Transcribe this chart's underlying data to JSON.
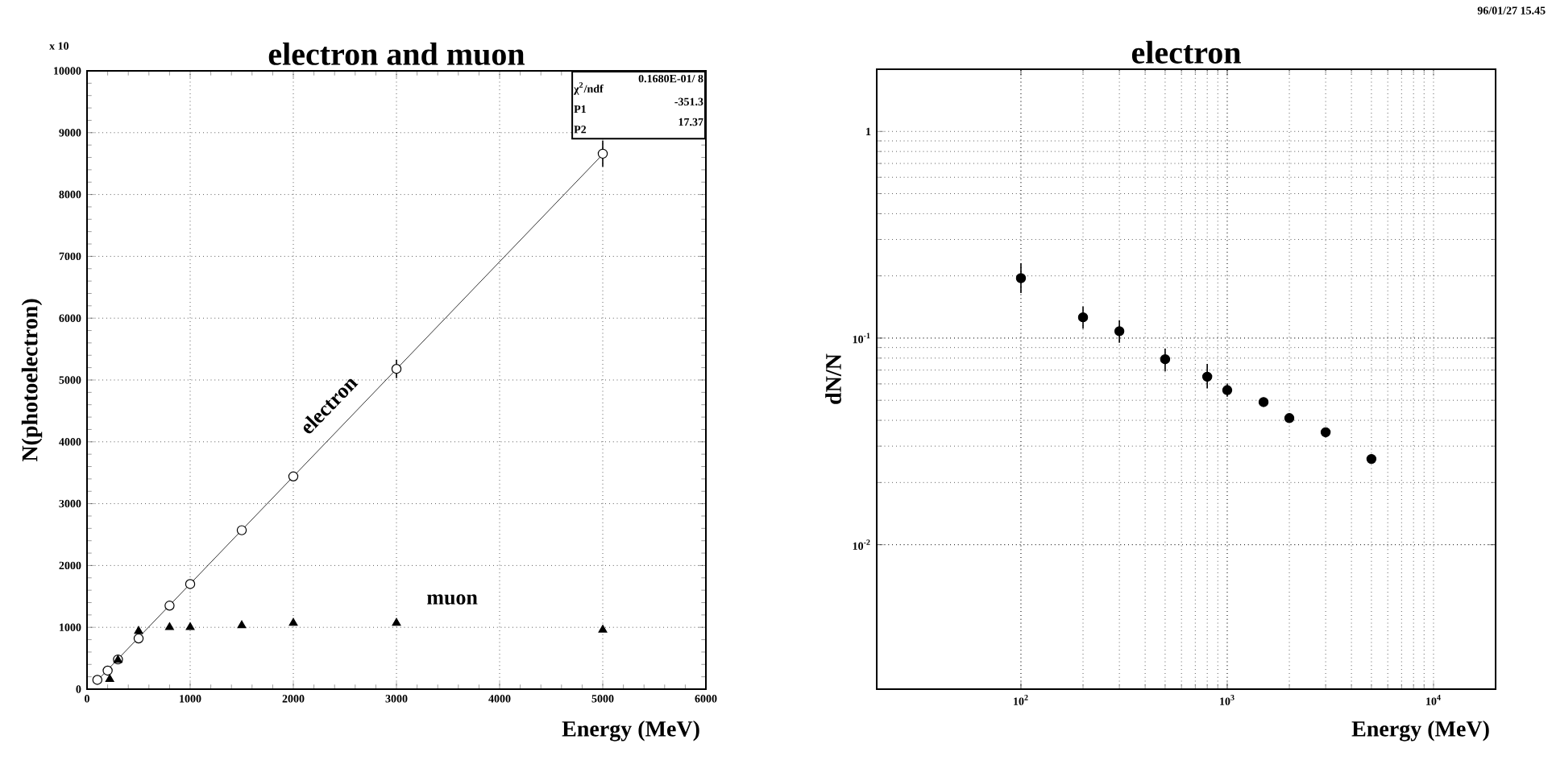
{
  "chart_data": [
    {
      "type": "scatter",
      "title": "electron and muon",
      "xlabel": "Energy (MeV)",
      "ylabel": "N(photoelectron)",
      "xlim": [
        0,
        6000
      ],
      "ylim": [
        0,
        10000
      ],
      "xticks": [
        0,
        1000,
        2000,
        3000,
        4000,
        5000,
        6000
      ],
      "yticks": [
        0,
        1000,
        2000,
        3000,
        4000,
        5000,
        6000,
        7000,
        8000,
        9000,
        10000
      ],
      "grid": true,
      "series": [
        {
          "name": "electron",
          "marker": "circle",
          "color": "#000000",
          "x": [
            100,
            200,
            300,
            500,
            800,
            1000,
            1500,
            2000,
            3000,
            5000
          ],
          "values": [
            150,
            300,
            480,
            820,
            1350,
            1700,
            2570,
            3440,
            5180,
            8660
          ],
          "errors": [
            null,
            null,
            null,
            null,
            null,
            null,
            null,
            null,
            150,
            210
          ]
        },
        {
          "type": "line",
          "marker": "none",
          "color": "#000000",
          "x": [
            100,
            5000
          ],
          "values": [
            140,
            8650
          ]
        },
        {
          "name": "muon",
          "marker": "triangle",
          "color": "#000000",
          "x": [
            220,
            300,
            500,
            800,
            1000,
            1500,
            2000,
            3000,
            5000
          ],
          "values": [
            160,
            470,
            940,
            1000,
            1000,
            1030,
            1070,
            1070,
            960
          ]
        }
      ],
      "annotations": [
        "x 10",
        "χ$^{2}$/ndf",
        "0.1680E-01/   8",
        "P1",
        "-351.3",
        "P2",
        "17.37"
      ]
    },
    {
      "type": "scatter",
      "title": "electron",
      "xlabel": "Energy (MeV)",
      "ylabel": "dN/N",
      "log": "xy",
      "xlim": [
        20,
        20000
      ],
      "ylim": [
        0.002,
        2
      ],
      "xticks": [
        {
          "value": 100,
          "label": "10$^{2}$"
        },
        {
          "value": 1000,
          "label": "10$^{3}$"
        },
        {
          "value": 10000,
          "label": "10$^{4}$"
        }
      ],
      "yticks": [
        {
          "value": 0.01,
          "label": "10$^{-2}$"
        },
        {
          "value": 0.1,
          "label": "10$^{-1}$"
        },
        1
      ],
      "grid": true,
      "series": [
        {
          "marker": "circle",
          "color": "#000000",
          "x": [
            100,
            200,
            300,
            500,
            800,
            1000,
            1500,
            2000,
            3000,
            5000
          ],
          "values": [
            0.195,
            0.126,
            0.108,
            0.079,
            0.065,
            0.056,
            0.049,
            0.041,
            0.035,
            0.026
          ],
          "errors": [
            [
              0.165,
              0.23
            ],
            [
              0.111,
              0.142
            ],
            [
              0.095,
              0.122
            ],
            [
              0.069,
              0.089
            ],
            [
              0.057,
              0.075
            ],
            [
              0.052,
              0.06
            ],
            null,
            null,
            null,
            null
          ]
        }
      ],
      "annotations": [
        "96/01/27   15.45"
      ]
    }
  ]
}
